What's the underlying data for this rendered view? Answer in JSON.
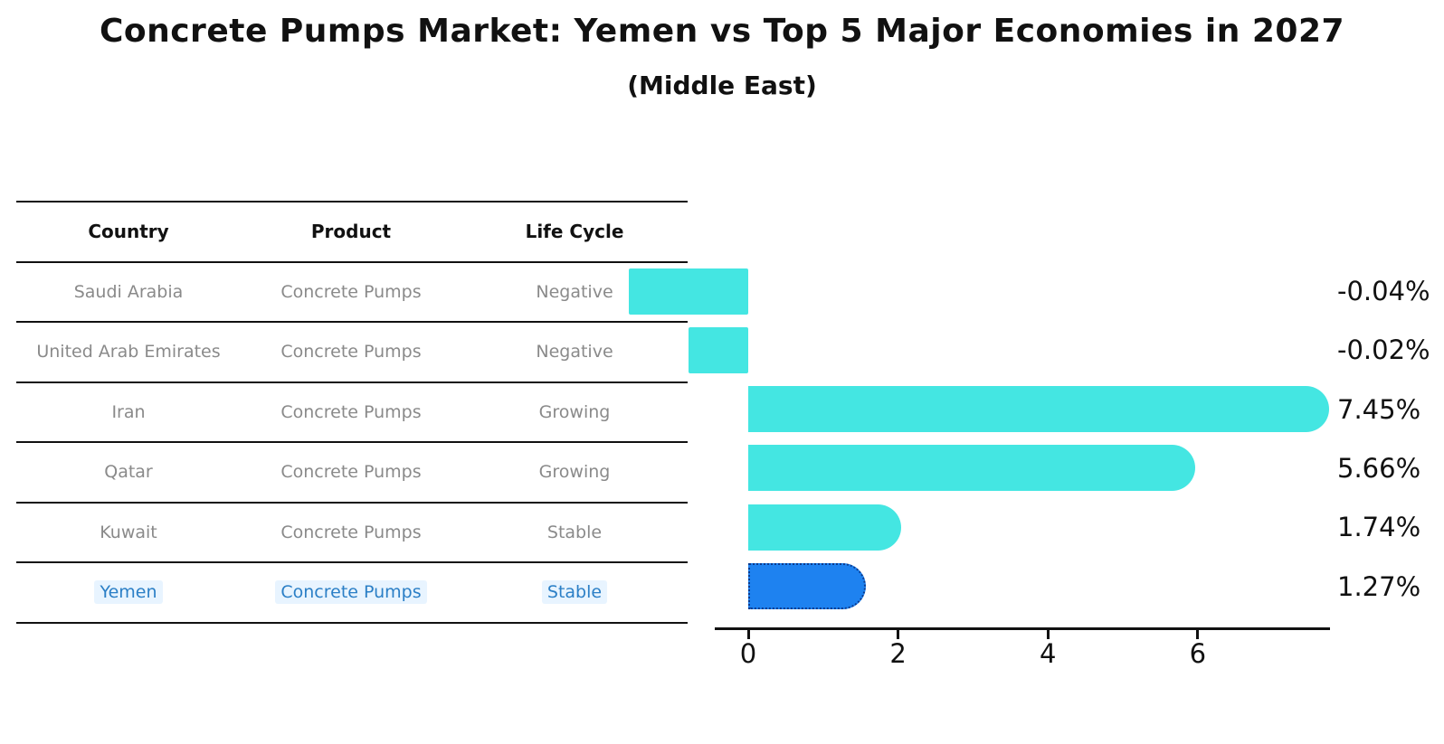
{
  "header": {
    "title": "Concrete Pumps Market: Yemen vs Top 5 Major Economies in 2027",
    "subtitle": "(Middle East)"
  },
  "table": {
    "headers": [
      "Country",
      "Product",
      "Life Cycle"
    ],
    "rows": [
      {
        "country": "Saudi Arabia",
        "product": "Concrete Pumps",
        "life_cycle": "Negative"
      },
      {
        "country": "United Arab Emirates",
        "product": "Concrete Pumps",
        "life_cycle": "Negative"
      },
      {
        "country": "Iran",
        "product": "Concrete Pumps",
        "life_cycle": "Growing"
      },
      {
        "country": "Qatar",
        "product": "Concrete Pumps",
        "life_cycle": "Growing"
      },
      {
        "country": "Kuwait",
        "product": "Concrete Pumps",
        "life_cycle": "Stable"
      },
      {
        "country": "Yemen",
        "product": "Concrete Pumps",
        "life_cycle": "Stable"
      }
    ],
    "highlighted_row": "Yemen"
  },
  "chart_data": {
    "type": "bar",
    "orientation": "horizontal",
    "title": "Concrete Pumps Market: Yemen vs Top 5 Major Economies in 2027 (Middle East)",
    "categories": [
      "Saudi Arabia",
      "United Arab Emirates",
      "Iran",
      "Qatar",
      "Kuwait",
      "Yemen"
    ],
    "values": [
      -0.04,
      -0.02,
      7.45,
      5.66,
      1.74,
      1.27
    ],
    "value_labels": [
      "-0.04%",
      "-0.02%",
      "7.45%",
      "5.66%",
      "1.74%",
      "1.27%"
    ],
    "x_ticks": [
      "0",
      "2",
      "4",
      "6"
    ],
    "x_tick_values": [
      0,
      2,
      4,
      6
    ],
    "xlim": [
      0,
      7.8
    ],
    "grid": false,
    "legend": "none",
    "bar_color": "#44e6e2",
    "highlight_bar_color": "#1e82f0",
    "highlight_border_color": "#0b3b8f",
    "highlight_index": 5
  },
  "colors": {
    "title_text": "#111111",
    "table_text": "#8a8a8a",
    "table_header_text": "#111111",
    "highlight_text": "#2b7fc6",
    "axis": "#111111"
  }
}
